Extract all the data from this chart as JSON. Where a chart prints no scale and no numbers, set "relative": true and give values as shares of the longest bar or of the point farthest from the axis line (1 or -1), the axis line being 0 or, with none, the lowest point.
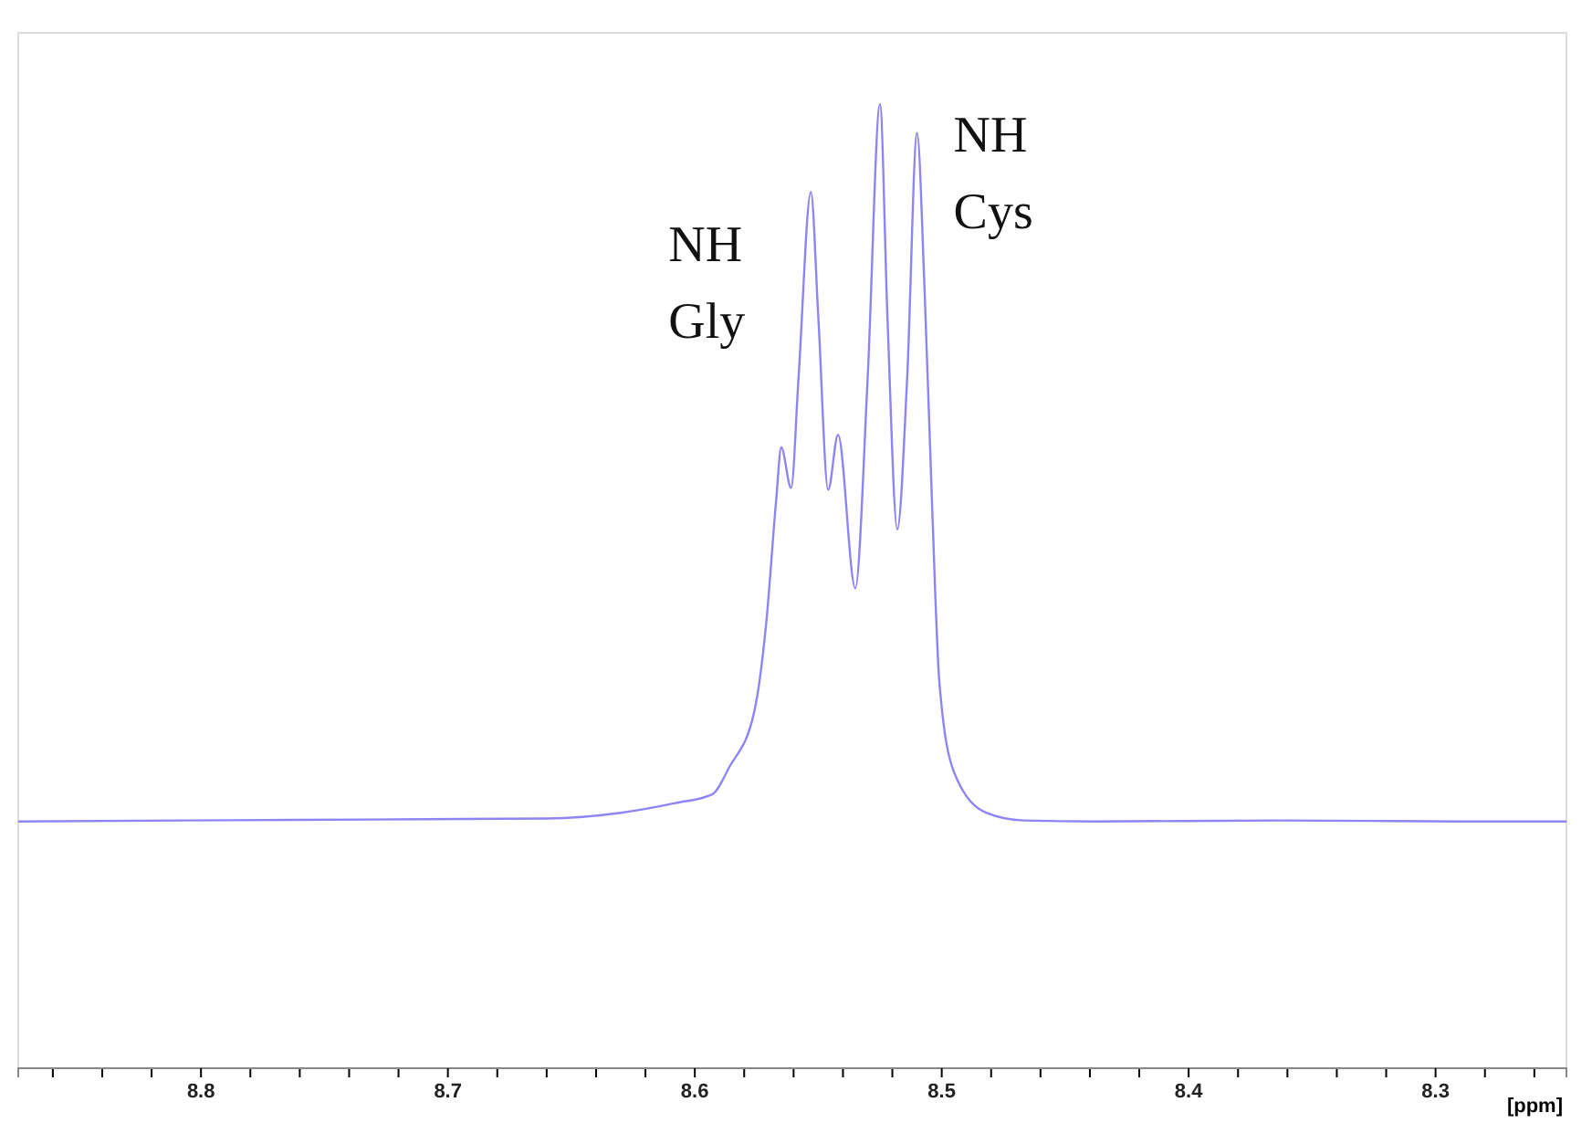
{
  "chart_data": {
    "type": "line",
    "relative": true,
    "xlabel": "[ppm]",
    "xlim": [
      8.874,
      8.247
    ],
    "xticks": [
      {
        "value": 8.86,
        "label": null
      },
      {
        "value": 8.84,
        "label": null
      },
      {
        "value": 8.82,
        "label": null
      },
      8.8,
      {
        "value": 8.78,
        "label": null
      },
      {
        "value": 8.76,
        "label": null
      },
      {
        "value": 8.74,
        "label": null
      },
      {
        "value": 8.72,
        "label": null
      },
      8.7,
      {
        "value": 8.68,
        "label": null
      },
      {
        "value": 8.66,
        "label": null
      },
      {
        "value": 8.64,
        "label": null
      },
      {
        "value": 8.62,
        "label": null
      },
      8.6,
      {
        "value": 8.58,
        "label": null
      },
      {
        "value": 8.56,
        "label": null
      },
      {
        "value": 8.54,
        "label": null
      },
      {
        "value": 8.52,
        "label": null
      },
      8.5,
      {
        "value": 8.48,
        "label": null
      },
      {
        "value": 8.46,
        "label": null
      },
      {
        "value": 8.44,
        "label": null
      },
      {
        "value": 8.42,
        "label": null
      },
      8.4,
      {
        "value": 8.38,
        "label": null
      },
      {
        "value": 8.36,
        "label": null
      },
      {
        "value": 8.34,
        "label": null
      },
      {
        "value": 8.32,
        "label": null
      },
      8.3,
      {
        "value": 8.28,
        "label": null
      },
      {
        "value": 8.26,
        "label": null
      }
    ],
    "series": [
      {
        "color": "#8f84f5",
        "x": [
          8.874,
          8.807,
          8.733,
          8.66,
          8.63,
          8.608,
          8.593,
          8.586,
          8.576,
          8.571,
          8.567,
          8.565,
          8.561,
          8.558,
          8.553,
          8.55,
          8.546,
          8.542,
          8.535,
          8.53,
          8.525,
          8.522,
          8.518,
          8.514,
          8.51,
          8.507,
          8.504,
          8.501,
          8.495,
          8.482,
          8.467,
          8.438,
          8.364,
          8.29,
          8.247
        ],
        "values": [
          0.256,
          0.257,
          0.258,
          0.259,
          0.265,
          0.275,
          0.284,
          0.3125,
          0.369,
          0.464,
          0.591,
          0.644,
          0.602,
          0.716,
          0.909,
          0.78,
          0.6,
          0.657,
          0.498,
          0.716,
          1,
          0.78,
          0.559,
          0.716,
          0.97,
          0.811,
          0.591,
          0.402,
          0.307,
          0.265,
          0.257,
          0.256,
          0.257,
          0.256,
          0.256
        ]
      }
    ],
    "annotations": [
      {
        "text": "NH\nGly",
        "x": 8.553,
        "y": 0.909
      },
      {
        "text": "NH\nCys",
        "x": 8.51,
        "y": 0.97
      }
    ]
  }
}
